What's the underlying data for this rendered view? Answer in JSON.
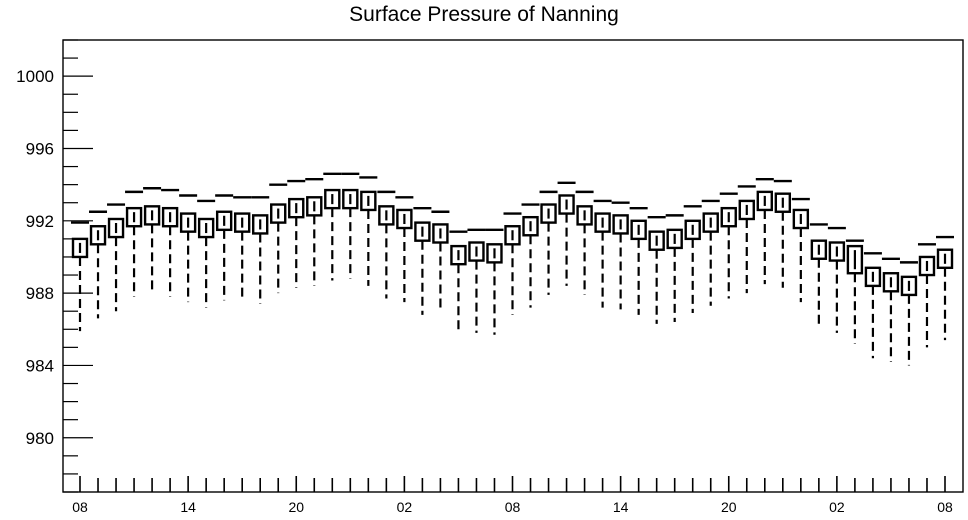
{
  "chart_data": {
    "type": "box",
    "title": "Surface Pressure of Nanning",
    "xlabel": "",
    "ylabel": "",
    "ylim": [
      977,
      1002
    ],
    "y_ticks": [
      980,
      984,
      988,
      992,
      996,
      1000
    ],
    "x_tick_labels": [
      "08",
      "14",
      "20",
      "02",
      "08",
      "14",
      "20",
      "02",
      "08"
    ],
    "x_tick_hours": [
      0,
      6,
      12,
      18,
      24,
      30,
      36,
      42,
      48
    ],
    "grid": false,
    "legend": "none",
    "box_color": "#000000",
    "boxes": [
      {
        "hour": 0,
        "whisker_low": 985.9,
        "q1": 990.0,
        "median": 990.5,
        "q3": 991.0,
        "whisker_high": 991.9
      },
      {
        "hour": 1,
        "whisker_low": 986.6,
        "q1": 990.7,
        "median": 991.2,
        "q3": 991.7,
        "whisker_high": 992.5
      },
      {
        "hour": 2,
        "whisker_low": 987.0,
        "q1": 991.1,
        "median": 991.6,
        "q3": 992.1,
        "whisker_high": 992.9
      },
      {
        "hour": 3,
        "whisker_low": 987.8,
        "q1": 991.7,
        "median": 992.2,
        "q3": 992.7,
        "whisker_high": 993.6
      },
      {
        "hour": 4,
        "whisker_low": 988.0,
        "q1": 991.8,
        "median": 992.3,
        "q3": 992.8,
        "whisker_high": 993.8
      },
      {
        "hour": 5,
        "whisker_low": 987.8,
        "q1": 991.7,
        "median": 992.2,
        "q3": 992.7,
        "whisker_high": 993.7
      },
      {
        "hour": 6,
        "whisker_low": 987.5,
        "q1": 991.4,
        "median": 991.9,
        "q3": 992.4,
        "whisker_high": 993.4
      },
      {
        "hour": 7,
        "whisker_low": 987.2,
        "q1": 991.1,
        "median": 991.6,
        "q3": 992.1,
        "whisker_high": 993.1
      },
      {
        "hour": 8,
        "whisker_low": 987.6,
        "q1": 991.5,
        "median": 992.0,
        "q3": 992.5,
        "whisker_high": 993.4
      },
      {
        "hour": 9,
        "whisker_low": 987.6,
        "q1": 991.4,
        "median": 991.9,
        "q3": 992.4,
        "whisker_high": 993.3
      },
      {
        "hour": 10,
        "whisker_low": 987.4,
        "q1": 991.3,
        "median": 991.8,
        "q3": 992.3,
        "whisker_high": 993.3
      },
      {
        "hour": 11,
        "whisker_low": 988.0,
        "q1": 991.9,
        "median": 992.4,
        "q3": 992.9,
        "whisker_high": 994.0
      },
      {
        "hour": 12,
        "whisker_low": 988.3,
        "q1": 992.2,
        "median": 992.7,
        "q3": 993.2,
        "whisker_high": 994.2
      },
      {
        "hour": 13,
        "whisker_low": 988.4,
        "q1": 992.3,
        "median": 992.8,
        "q3": 993.3,
        "whisker_high": 994.3
      },
      {
        "hour": 14,
        "whisker_low": 988.7,
        "q1": 992.7,
        "median": 993.2,
        "q3": 993.7,
        "whisker_high": 994.6
      },
      {
        "hour": 15,
        "whisker_low": 988.8,
        "q1": 992.7,
        "median": 993.2,
        "q3": 993.7,
        "whisker_high": 994.6
      },
      {
        "hour": 16,
        "whisker_low": 988.4,
        "q1": 992.6,
        "median": 993.1,
        "q3": 993.6,
        "whisker_high": 994.4
      },
      {
        "hour": 17,
        "whisker_low": 987.7,
        "q1": 991.8,
        "median": 992.3,
        "q3": 992.8,
        "whisker_high": 993.6
      },
      {
        "hour": 18,
        "whisker_low": 987.5,
        "q1": 991.6,
        "median": 992.1,
        "q3": 992.6,
        "whisker_high": 993.3
      },
      {
        "hour": 19,
        "whisker_low": 986.8,
        "q1": 990.9,
        "median": 991.4,
        "q3": 991.9,
        "whisker_high": 992.7
      },
      {
        "hour": 20,
        "whisker_low": 987.1,
        "q1": 990.8,
        "median": 991.3,
        "q3": 991.8,
        "whisker_high": 992.5
      },
      {
        "hour": 21,
        "whisker_low": 985.8,
        "q1": 989.6,
        "median": 990.1,
        "q3": 990.6,
        "whisker_high": 991.4
      },
      {
        "hour": 22,
        "whisker_low": 985.8,
        "q1": 989.8,
        "median": 990.3,
        "q3": 990.8,
        "whisker_high": 991.5
      },
      {
        "hour": 23,
        "whisker_low": 985.7,
        "q1": 989.7,
        "median": 990.2,
        "q3": 990.7,
        "whisker_high": 991.5
      },
      {
        "hour": 24,
        "whisker_low": 986.8,
        "q1": 990.7,
        "median": 991.2,
        "q3": 991.7,
        "whisker_high": 992.4
      },
      {
        "hour": 25,
        "whisker_low": 987.2,
        "q1": 991.2,
        "median": 991.7,
        "q3": 992.2,
        "whisker_high": 992.9
      },
      {
        "hour": 26,
        "whisker_low": 987.9,
        "q1": 991.9,
        "median": 992.4,
        "q3": 992.9,
        "whisker_high": 993.6
      },
      {
        "hour": 27,
        "whisker_low": 988.4,
        "q1": 992.4,
        "median": 992.9,
        "q3": 993.4,
        "whisker_high": 994.1
      },
      {
        "hour": 28,
        "whisker_low": 987.9,
        "q1": 991.8,
        "median": 992.3,
        "q3": 992.8,
        "whisker_high": 993.6
      },
      {
        "hour": 29,
        "whisker_low": 987.2,
        "q1": 991.4,
        "median": 991.9,
        "q3": 992.4,
        "whisker_high": 993.1
      },
      {
        "hour": 30,
        "whisker_low": 987.1,
        "q1": 991.3,
        "median": 991.8,
        "q3": 992.3,
        "whisker_high": 993.0
      },
      {
        "hour": 31,
        "whisker_low": 986.8,
        "q1": 991.0,
        "median": 991.5,
        "q3": 992.0,
        "whisker_high": 992.7
      },
      {
        "hour": 32,
        "whisker_low": 986.3,
        "q1": 990.4,
        "median": 990.9,
        "q3": 991.4,
        "whisker_high": 992.2
      },
      {
        "hour": 33,
        "whisker_low": 986.4,
        "q1": 990.5,
        "median": 991.0,
        "q3": 991.5,
        "whisker_high": 992.3
      },
      {
        "hour": 34,
        "whisker_low": 986.9,
        "q1": 991.0,
        "median": 991.5,
        "q3": 992.0,
        "whisker_high": 992.8
      },
      {
        "hour": 35,
        "whisker_low": 987.3,
        "q1": 991.4,
        "median": 991.9,
        "q3": 992.4,
        "whisker_high": 993.1
      },
      {
        "hour": 36,
        "whisker_low": 987.7,
        "q1": 991.7,
        "median": 992.2,
        "q3": 992.7,
        "whisker_high": 993.5
      },
      {
        "hour": 37,
        "whisker_low": 988.0,
        "q1": 992.1,
        "median": 992.6,
        "q3": 993.1,
        "whisker_high": 993.9
      },
      {
        "hour": 38,
        "whisker_low": 988.5,
        "q1": 992.6,
        "median": 993.1,
        "q3": 993.6,
        "whisker_high": 994.3
      },
      {
        "hour": 39,
        "whisker_low": 988.3,
        "q1": 992.5,
        "median": 993.0,
        "q3": 993.5,
        "whisker_high": 994.2
      },
      {
        "hour": 40,
        "whisker_low": 987.5,
        "q1": 991.6,
        "median": 992.1,
        "q3": 992.6,
        "whisker_high": 993.2
      },
      {
        "hour": 41,
        "whisker_low": 986.1,
        "q1": 989.9,
        "median": 990.4,
        "q3": 990.9,
        "whisker_high": 991.8
      },
      {
        "hour": 42,
        "whisker_low": 985.8,
        "q1": 989.8,
        "median": 990.3,
        "q3": 990.8,
        "whisker_high": 991.6
      },
      {
        "hour": 43,
        "whisker_low": 985.2,
        "q1": 989.1,
        "median": 989.9,
        "q3": 990.6,
        "whisker_high": 990.9
      },
      {
        "hour": 44,
        "whisker_low": 984.4,
        "q1": 988.4,
        "median": 988.9,
        "q3": 989.4,
        "whisker_high": 990.2
      },
      {
        "hour": 45,
        "whisker_low": 984.2,
        "q1": 988.1,
        "median": 988.6,
        "q3": 989.1,
        "whisker_high": 989.9
      },
      {
        "hour": 46,
        "whisker_low": 984.0,
        "q1": 987.9,
        "median": 988.4,
        "q3": 988.9,
        "whisker_high": 989.7
      },
      {
        "hour": 47,
        "whisker_low": 985.0,
        "q1": 989.0,
        "median": 989.5,
        "q3": 990.0,
        "whisker_high": 990.7
      },
      {
        "hour": 48,
        "whisker_low": 985.4,
        "q1": 989.4,
        "median": 989.9,
        "q3": 990.4,
        "whisker_high": 991.1
      }
    ]
  }
}
